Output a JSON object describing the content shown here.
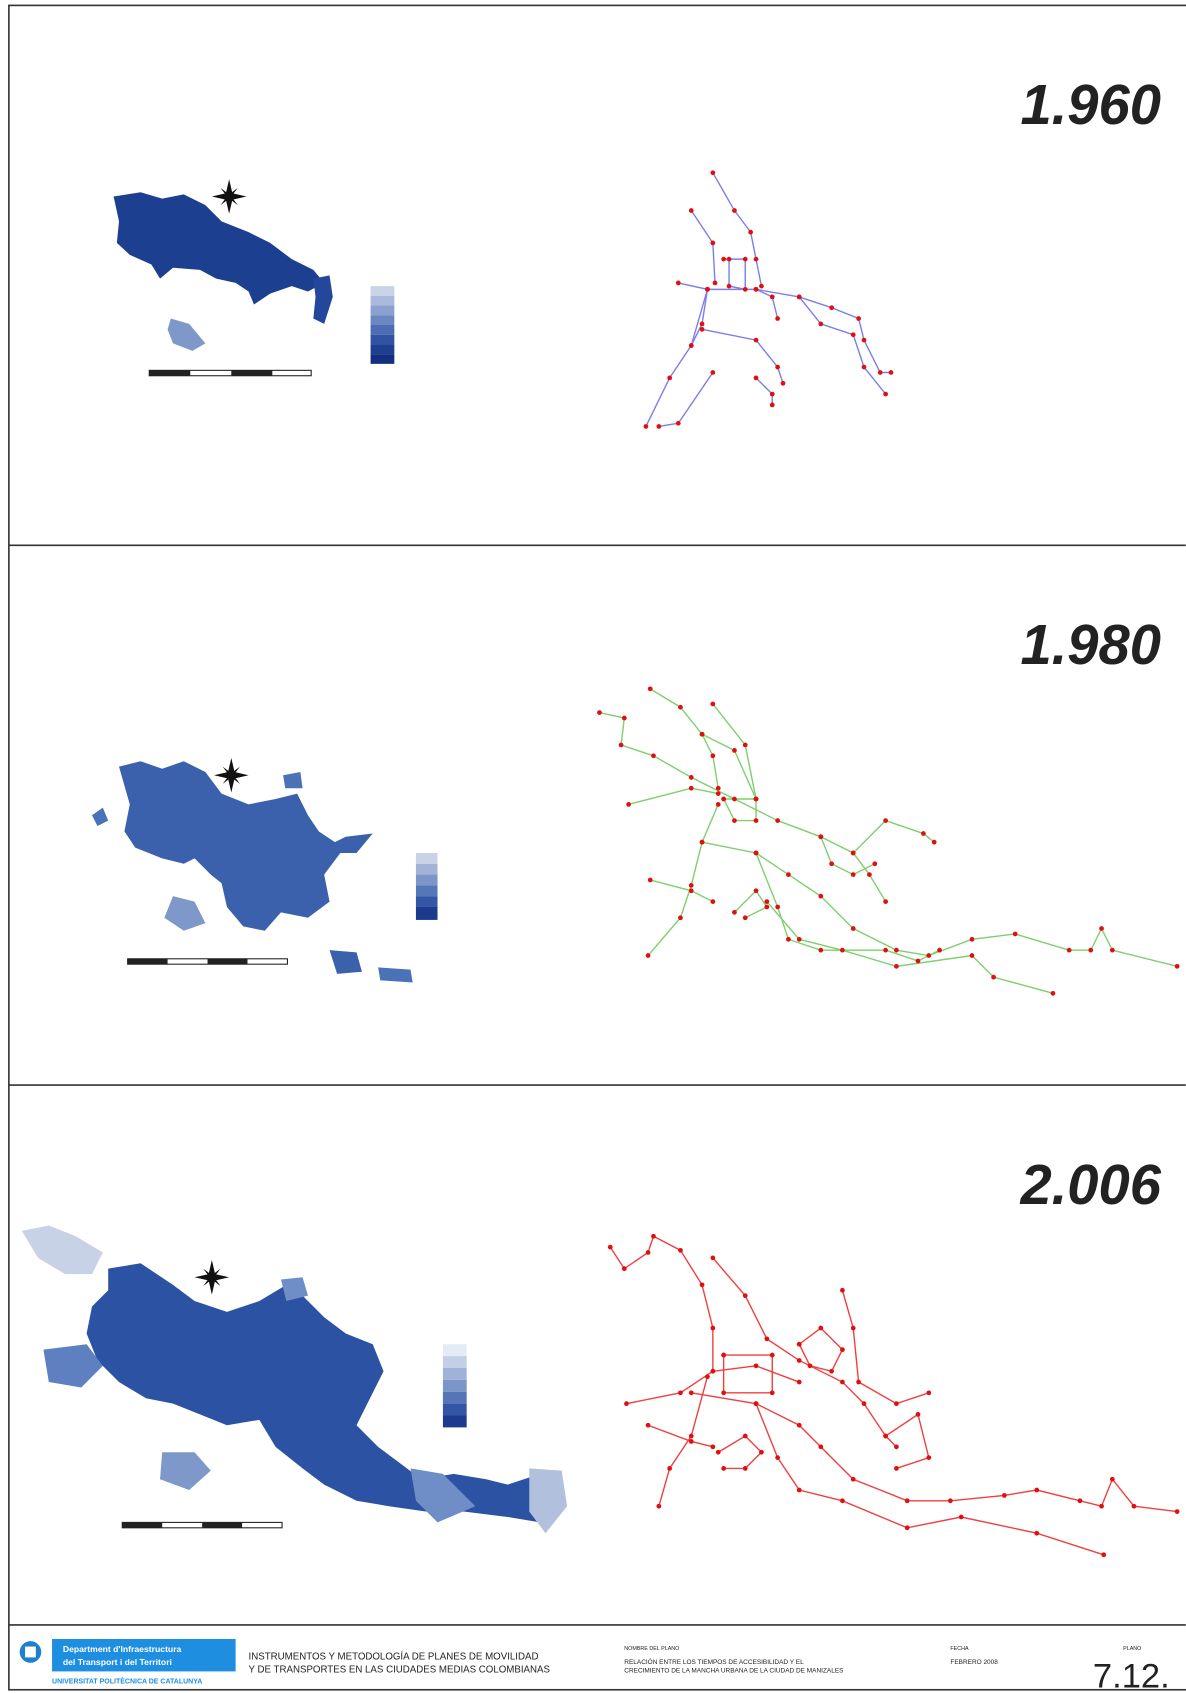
{
  "panels": [
    {
      "year": "1.960"
    },
    {
      "year": "1.980"
    },
    {
      "year": "2.006"
    }
  ],
  "footer": {
    "institution": [
      "Department d'Infraestructura",
      "del Transport i del Territori"
    ],
    "university": "UNIVERSITAT POLITÈCNICA DE CATALUNYA",
    "project": [
      "INSTRUMENTOS Y METODOLOGÍA DE PLANES DE MOVILIDAD",
      "Y DE TRANSPORTES EN LAS CIUDADES MEDIAS COLOMBIANAS"
    ],
    "plan_name_label": "NOMBRE DEL PLANO",
    "plan_name": [
      "RELACIÓN ENTRE LOS TIEMPOS DE ACCESIBILIDAD Y EL",
      "CRECIMIENTO DE LA MANCHA URBANA DE LA CIUDAD DE MANIZALES"
    ],
    "date_label": "FECHA",
    "date": "FEBRERO 2008",
    "plan_label": "PLANO",
    "plan_number": "7.12."
  }
}
